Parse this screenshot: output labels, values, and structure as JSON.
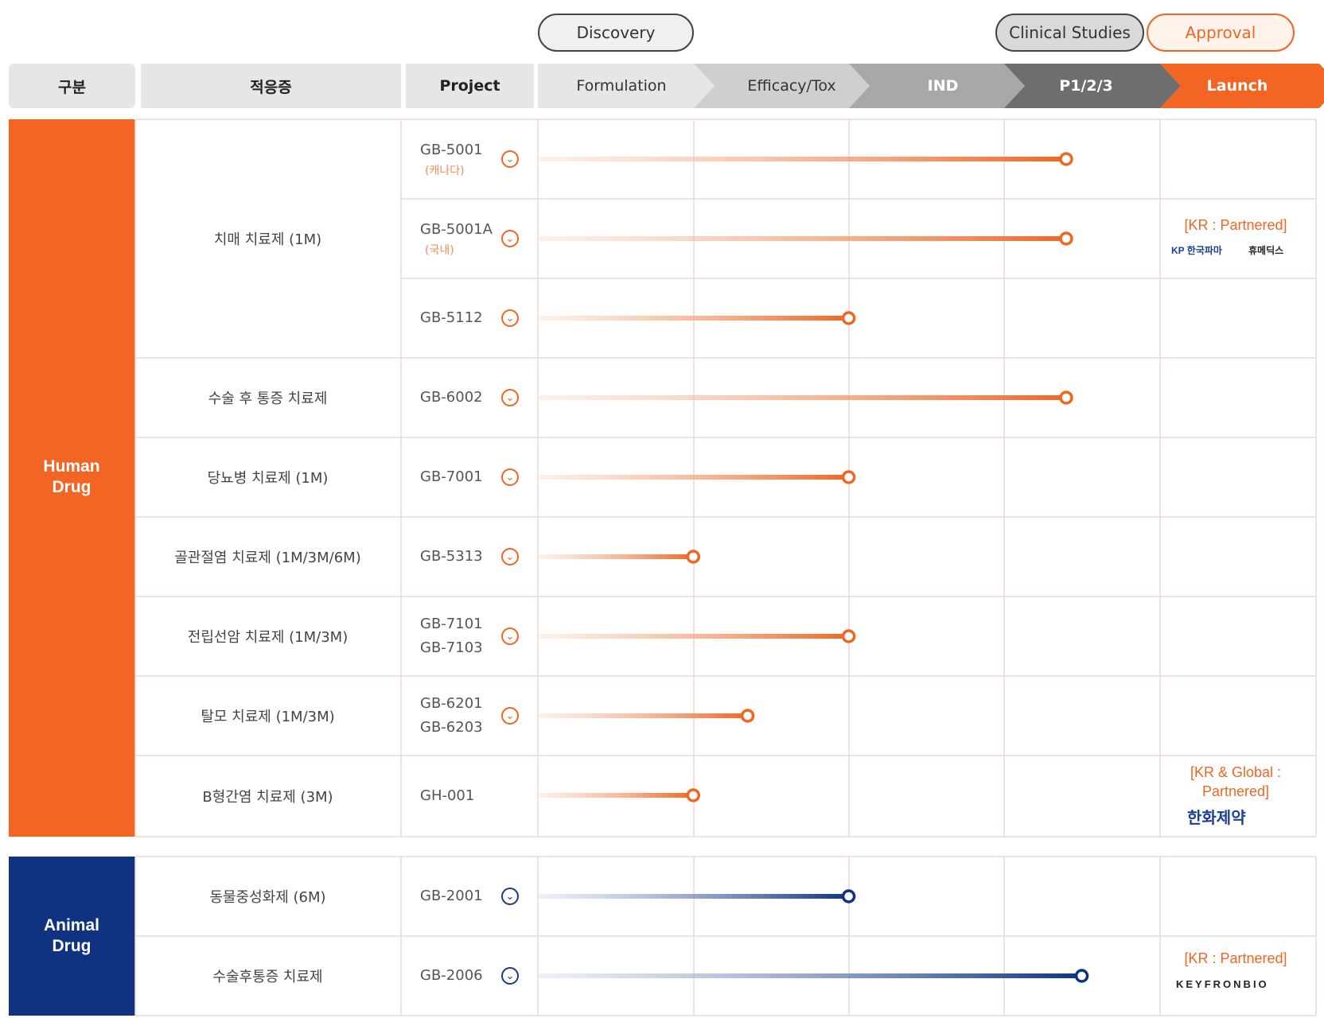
{
  "phases": {
    "discovery": "Discovery",
    "clinical": "Clinical Studies",
    "approval": "Approval"
  },
  "header": {
    "category": "구분",
    "indication": "적응증",
    "project": "Project"
  },
  "stages": [
    "Formulation",
    "Efficacy/Tox",
    "IND",
    "P1/2/3",
    "Launch"
  ],
  "categories": {
    "human": "Human Drug",
    "animal": "Animal Drug"
  },
  "colors": {
    "orange": "#f26522",
    "navy": "#0f3380",
    "stage_fills": [
      "#e6e6e6",
      "#cfcfcf",
      "#a8a8a8",
      "#6e6e6e",
      "#f26522"
    ]
  },
  "indications": {
    "dementia": "치매 치료제 (1M)",
    "postop": "수술 후 통증 치료제",
    "diabetes": "당뇨병 치료제 (1M)",
    "osteo": "골관절염 치료제 (1M/3M/6M)",
    "prostate": "전립선암 치료제 (1M/3M)",
    "hairloss": "탈모 치료제 (1M/3M)",
    "hepb": "B형간염 치료제 (3M)",
    "animal_neuter": "동물중성화제 (6M)",
    "animal_postop": "수술후통증 치료제"
  },
  "projects": [
    {
      "code": "GB-5001",
      "sub": "(캐나다)",
      "progress": 3.4,
      "icon": "chevron-down-icon"
    },
    {
      "code": "GB-5001A",
      "sub": "(국내)",
      "progress": 3.4,
      "icon": "chevron-down-icon"
    },
    {
      "code": "GB-5112",
      "sub": "",
      "progress": 2.0,
      "icon": "chevron-down-icon"
    },
    {
      "code": "GB-6002",
      "sub": "",
      "progress": 3.4,
      "icon": "chevron-down-icon"
    },
    {
      "code": "GB-7001",
      "sub": "",
      "progress": 2.0,
      "icon": "chevron-down-icon"
    },
    {
      "code": "GB-5313",
      "sub": "",
      "progress": 1.0,
      "icon": "chevron-down-icon"
    },
    {
      "code": "GB-7101",
      "code2": "GB-7103",
      "progress": 2.0,
      "icon": "chevron-down-icon"
    },
    {
      "code": "GB-6201",
      "code2": "GB-6203",
      "progress": 1.35,
      "icon": "chevron-down-icon"
    },
    {
      "code": "GH-001",
      "sub": "",
      "progress": 1.0
    },
    {
      "code": "GB-2001",
      "sub": "",
      "progress": 2.0,
      "icon": "chevron-down-icon"
    },
    {
      "code": "GB-2006",
      "sub": "",
      "progress": 3.5,
      "icon": "chevron-down-icon"
    }
  ],
  "partners": {
    "p1": "[KR : Partnered]",
    "p1_logo1": "KP 한국파마",
    "p1_logo2": "휴메딕스",
    "p2": "[KR & Global : Partnered]",
    "p2_logo": "한화제약",
    "p3": "[KR : Partnered]",
    "p3_logo": "KEYFRONBIO"
  }
}
